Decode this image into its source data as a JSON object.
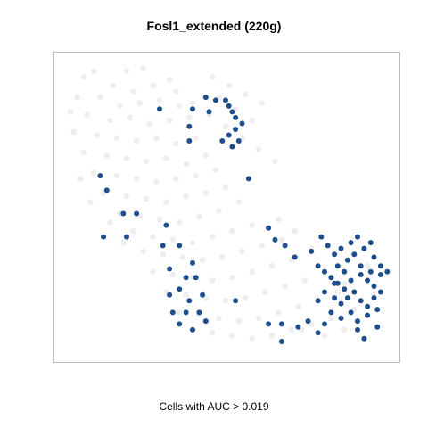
{
  "chart_data": {
    "type": "scatter",
    "title": "Fosl1_extended (220g)",
    "caption": "Cells with AUC > 0.019",
    "xlabel": "",
    "ylabel": "",
    "xlim": [
      0,
      100
    ],
    "ylim": [
      0,
      100
    ],
    "axes_ticks": false,
    "grid": false,
    "series": [
      {
        "role": "below-threshold",
        "color": "#ececec",
        "points": [
          [
            10,
            97
          ],
          [
            20,
            97
          ],
          [
            25,
            98
          ],
          [
            16,
            92
          ],
          [
            22,
            90
          ],
          [
            28,
            92
          ],
          [
            33,
            94
          ],
          [
            5,
            88
          ],
          [
            12,
            88
          ],
          [
            18,
            85
          ],
          [
            24,
            86
          ],
          [
            30,
            87
          ],
          [
            36,
            85
          ],
          [
            8,
            82
          ],
          [
            15,
            80
          ],
          [
            21,
            81
          ],
          [
            27,
            79
          ],
          [
            33,
            80
          ],
          [
            39,
            81
          ],
          [
            4,
            76
          ],
          [
            11,
            75
          ],
          [
            17,
            74
          ],
          [
            23,
            73
          ],
          [
            29,
            74
          ],
          [
            35,
            72
          ],
          [
            41,
            74
          ],
          [
            7,
            69
          ],
          [
            14,
            68
          ],
          [
            20,
            67
          ],
          [
            26,
            66
          ],
          [
            32,
            67
          ],
          [
            38,
            65
          ],
          [
            44,
            68
          ],
          [
            10,
            62
          ],
          [
            17,
            61
          ],
          [
            23,
            60
          ],
          [
            29,
            59
          ],
          [
            35,
            60
          ],
          [
            41,
            61
          ],
          [
            47,
            63
          ],
          [
            13,
            55
          ],
          [
            20,
            54
          ],
          [
            26,
            53
          ],
          [
            32,
            52
          ],
          [
            38,
            54
          ],
          [
            44,
            55
          ],
          [
            50,
            57
          ],
          [
            18,
            48
          ],
          [
            24,
            47
          ],
          [
            30,
            46
          ],
          [
            36,
            45
          ],
          [
            42,
            47
          ],
          [
            48,
            49
          ],
          [
            54,
            52
          ],
          [
            22,
            42
          ],
          [
            28,
            40
          ],
          [
            34,
            39
          ],
          [
            40,
            38
          ],
          [
            46,
            40
          ],
          [
            52,
            42
          ],
          [
            58,
            44
          ],
          [
            25,
            35
          ],
          [
            31,
            34
          ],
          [
            37,
            33
          ],
          [
            43,
            32
          ],
          [
            49,
            33
          ],
          [
            55,
            35
          ],
          [
            61,
            37
          ],
          [
            67,
            39
          ],
          [
            28,
            28
          ],
          [
            34,
            27
          ],
          [
            40,
            26
          ],
          [
            46,
            25
          ],
          [
            52,
            26
          ],
          [
            58,
            28
          ],
          [
            64,
            30
          ],
          [
            70,
            32
          ],
          [
            32,
            21
          ],
          [
            38,
            20
          ],
          [
            44,
            19
          ],
          [
            50,
            18
          ],
          [
            56,
            19
          ],
          [
            62,
            21
          ],
          [
            68,
            23
          ],
          [
            74,
            25
          ],
          [
            36,
            14
          ],
          [
            42,
            13
          ],
          [
            48,
            12
          ],
          [
            54,
            11
          ],
          [
            60,
            12
          ],
          [
            66,
            14
          ],
          [
            72,
            16
          ],
          [
            78,
            18
          ],
          [
            84,
            21
          ],
          [
            40,
            8
          ],
          [
            46,
            7
          ],
          [
            52,
            6
          ],
          [
            58,
            5
          ],
          [
            64,
            6
          ],
          [
            70,
            8
          ],
          [
            76,
            10
          ],
          [
            82,
            12
          ],
          [
            35,
            90
          ],
          [
            40,
            86
          ],
          [
            45,
            82
          ],
          [
            50,
            78
          ],
          [
            55,
            74
          ],
          [
            48,
            88
          ],
          [
            53,
            84
          ],
          [
            58,
            80
          ],
          [
            60,
            70
          ],
          [
            65,
            66
          ],
          [
            7,
            95
          ],
          [
            3,
            83
          ],
          [
            6,
            60
          ],
          [
            9,
            52
          ],
          [
            15,
            45
          ],
          [
            19,
            38
          ],
          [
            46,
            95
          ],
          [
            51,
            92
          ],
          [
            56,
            89
          ],
          [
            61,
            86
          ],
          [
            66,
            46
          ],
          [
            71,
            42
          ],
          [
            76,
            36
          ],
          [
            80,
            28
          ],
          [
            86,
            24
          ],
          [
            89,
            15
          ],
          [
            93,
            30
          ],
          [
            95,
            20
          ],
          [
            73,
            8
          ],
          [
            80,
            6
          ],
          [
            86,
            8
          ]
        ]
      },
      {
        "role": "above-threshold",
        "color": "#1f4e8c",
        "points": [
          [
            44,
            88
          ],
          [
            47,
            87
          ],
          [
            50,
            87
          ],
          [
            51,
            85
          ],
          [
            52,
            83
          ],
          [
            53,
            81
          ],
          [
            55,
            79
          ],
          [
            53,
            77
          ],
          [
            51,
            75
          ],
          [
            49,
            73
          ],
          [
            52,
            71
          ],
          [
            54,
            73
          ],
          [
            45,
            83
          ],
          [
            40,
            84
          ],
          [
            39,
            78
          ],
          [
            39,
            73
          ],
          [
            30,
            84
          ],
          [
            12,
            61
          ],
          [
            14,
            56
          ],
          [
            23,
            48
          ],
          [
            19,
            48
          ],
          [
            13,
            40
          ],
          [
            20,
            40
          ],
          [
            32,
            44
          ],
          [
            31,
            37
          ],
          [
            36,
            37
          ],
          [
            57,
            60
          ],
          [
            63,
            43
          ],
          [
            65,
            39
          ],
          [
            68,
            37
          ],
          [
            71,
            33
          ],
          [
            33,
            29
          ],
          [
            40,
            31
          ],
          [
            41,
            26
          ],
          [
            38,
            26
          ],
          [
            36,
            22
          ],
          [
            39,
            18
          ],
          [
            34,
            14
          ],
          [
            38,
            14
          ],
          [
            42,
            14
          ],
          [
            36,
            10
          ],
          [
            40,
            8
          ],
          [
            44,
            11
          ],
          [
            33,
            20
          ],
          [
            43,
            20
          ],
          [
            53,
            18
          ],
          [
            63,
            10
          ],
          [
            67,
            10
          ],
          [
            67,
            4
          ],
          [
            72,
            9
          ],
          [
            75,
            11
          ],
          [
            78,
            7
          ],
          [
            76,
            35
          ],
          [
            78,
            30
          ],
          [
            80,
            28
          ],
          [
            82,
            26
          ],
          [
            84,
            24
          ],
          [
            86,
            22
          ],
          [
            88,
            25
          ],
          [
            91,
            27
          ],
          [
            93,
            25
          ],
          [
            95,
            23
          ],
          [
            97,
            27
          ],
          [
            80,
            21
          ],
          [
            83,
            19
          ],
          [
            85,
            17
          ],
          [
            87,
            19
          ],
          [
            89,
            21
          ],
          [
            91,
            18
          ],
          [
            93,
            16
          ],
          [
            95,
            19
          ],
          [
            97,
            21
          ],
          [
            82,
            14
          ],
          [
            85,
            12
          ],
          [
            88,
            14
          ],
          [
            90,
            11
          ],
          [
            93,
            13
          ],
          [
            96,
            15
          ],
          [
            84,
            30
          ],
          [
            87,
            32
          ],
          [
            89,
            34
          ],
          [
            92,
            36
          ],
          [
            95,
            33
          ],
          [
            97,
            30
          ],
          [
            86,
            28
          ],
          [
            91,
            30
          ],
          [
            83,
            34
          ],
          [
            90,
            40
          ],
          [
            94,
            38
          ],
          [
            99,
            28
          ],
          [
            92,
            5
          ],
          [
            79,
            40
          ],
          [
            81,
            37
          ],
          [
            85,
            36
          ],
          [
            88,
            38
          ],
          [
            96,
            9
          ],
          [
            90,
            8
          ],
          [
            80,
            10
          ],
          [
            83,
            24
          ],
          [
            78,
            18
          ],
          [
            94,
            28
          ]
        ]
      }
    ]
  }
}
